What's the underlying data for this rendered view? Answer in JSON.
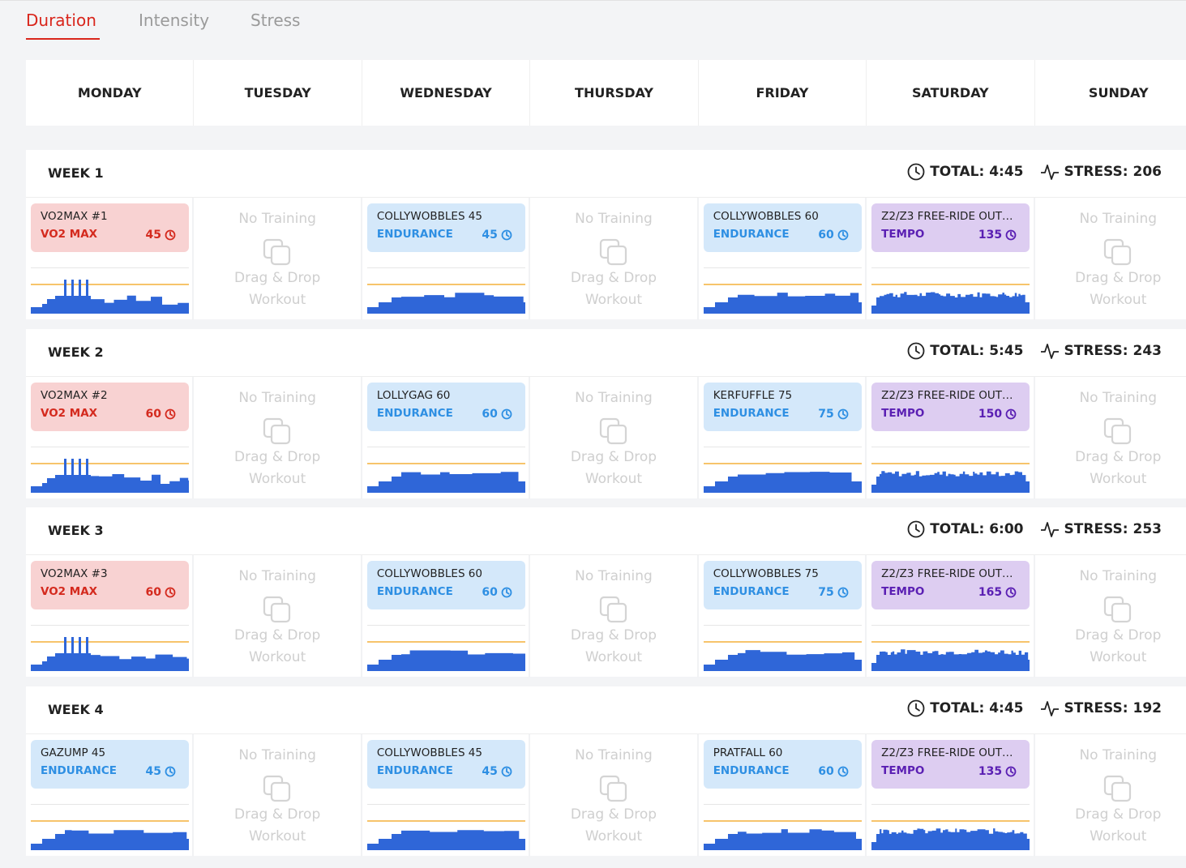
{
  "tabs": [
    "Duration",
    "Intensity",
    "Stress"
  ],
  "active_tab": 0,
  "days": [
    "MONDAY",
    "TUESDAY",
    "WEDNESDAY",
    "THURSDAY",
    "FRIDAY",
    "SATURDAY",
    "SUNDAY"
  ],
  "weeks": [
    {
      "label": "WEEK 1",
      "total": "TOTAL: 4:45",
      "stress": "STRESS: 206",
      "cells": [
        {
          "title": "VO2MAX #1",
          "category": "VO2 MAX",
          "duration": 45,
          "color": "#f8d2d2",
          "accent": "#d42a1e"
        },
        {
          "placeholder": "No Training",
          "hint": "Drag & Drop Workout"
        },
        {
          "title": "COLLYWOBBLES 45",
          "category": "ENDURANCE",
          "duration": 45,
          "color": "#d4e8fa",
          "accent": "#2e8fe3"
        },
        {
          "placeholder": "No Training",
          "hint": "Drag & Drop Workout"
        },
        {
          "title": "COLLYWOBBLES 60",
          "category": "ENDURANCE",
          "duration": 60,
          "color": "#d4e8fa",
          "accent": "#2e8fe3"
        },
        {
          "title": "Z2/Z3 FREE-RIDE OUT…",
          "category": "TEMPO",
          "duration": 135,
          "color": "#ddcdf1",
          "accent": "#5a1fb3"
        },
        {
          "placeholder": "No Training",
          "hint": "Drag & Drop Workout"
        }
      ]
    },
    {
      "label": "WEEK 2",
      "total": "TOTAL: 5:45",
      "stress": "STRESS: 243",
      "cells": [
        {
          "title": "VO2MAX #2",
          "category": "VO2 MAX",
          "duration": 60,
          "color": "#f8d2d2",
          "accent": "#d42a1e"
        },
        {
          "placeholder": "No Training",
          "hint": "Drag & Drop Workout"
        },
        {
          "title": "LOLLYGAG 60",
          "category": "ENDURANCE",
          "duration": 60,
          "color": "#d4e8fa",
          "accent": "#2e8fe3"
        },
        {
          "placeholder": "No Training",
          "hint": "Drag & Drop Workout"
        },
        {
          "title": "KERFUFFLE 75",
          "category": "ENDURANCE",
          "duration": 75,
          "color": "#d4e8fa",
          "accent": "#2e8fe3"
        },
        {
          "title": "Z2/Z3 FREE-RIDE OUT…",
          "category": "TEMPO",
          "duration": 150,
          "color": "#ddcdf1",
          "accent": "#5a1fb3"
        },
        {
          "placeholder": "No Training",
          "hint": "Drag & Drop Workout"
        }
      ]
    },
    {
      "label": "WEEK 3",
      "total": "TOTAL: 6:00",
      "stress": "STRESS: 253",
      "cells": [
        {
          "title": "VO2MAX #3",
          "category": "VO2 MAX",
          "duration": 60,
          "color": "#f8d2d2",
          "accent": "#d42a1e"
        },
        {
          "placeholder": "No Training",
          "hint": "Drag & Drop Workout"
        },
        {
          "title": "COLLYWOBBLES 60",
          "category": "ENDURANCE",
          "duration": 60,
          "color": "#d4e8fa",
          "accent": "#2e8fe3"
        },
        {
          "placeholder": "No Training",
          "hint": "Drag & Drop Workout"
        },
        {
          "title": "COLLYWOBBLES 75",
          "category": "ENDURANCE",
          "duration": 75,
          "color": "#d4e8fa",
          "accent": "#2e8fe3"
        },
        {
          "title": "Z2/Z3 FREE-RIDE OUT…",
          "category": "TEMPO",
          "duration": 165,
          "color": "#ddcdf1",
          "accent": "#5a1fb3"
        },
        {
          "placeholder": "No Training",
          "hint": "Drag & Drop Workout"
        }
      ]
    },
    {
      "label": "WEEK 4",
      "total": "TOTAL: 4:45",
      "stress": "STRESS: 192",
      "cells": [
        {
          "title": "GAZUMP 45",
          "category": "ENDURANCE",
          "duration": 45,
          "color": "#d4e8fa",
          "accent": "#2e8fe3"
        },
        {
          "placeholder": "No Training",
          "hint": "Drag & Drop Workout"
        },
        {
          "title": "COLLYWOBBLES 45",
          "category": "ENDURANCE",
          "duration": 45,
          "color": "#d4e8fa",
          "accent": "#2e8fe3"
        },
        {
          "placeholder": "No Training",
          "hint": "Drag & Drop Workout"
        },
        {
          "title": "PRATFALL 60",
          "category": "ENDURANCE",
          "duration": 60,
          "color": "#d4e8fa",
          "accent": "#2e8fe3"
        },
        {
          "title": "Z2/Z3 FREE-RIDE OUT…",
          "category": "TEMPO",
          "duration": 135,
          "color": "#ddcdf1",
          "accent": "#5a1fb3"
        },
        {
          "placeholder": "No Training",
          "hint": "Drag & Drop Workout"
        }
      ]
    }
  ]
}
